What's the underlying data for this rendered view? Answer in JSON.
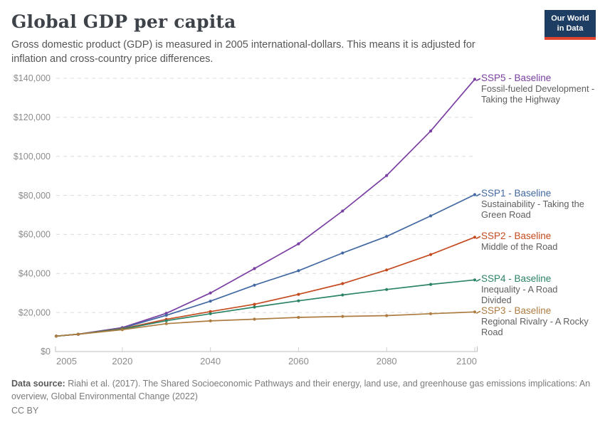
{
  "header": {
    "title": "Global GDP per capita",
    "subtitle": "Gross domestic product (GDP) is measured in 2005 international-dollars. This means it is adjusted for inflation and cross-country price differences.",
    "logo": {
      "line1": "Our World",
      "line2": "in Data",
      "bg_color": "#1d3d63",
      "accent_color": "#e0432e"
    }
  },
  "chart_data": {
    "type": "line",
    "title": "Global GDP per capita",
    "xlabel": "",
    "ylabel": "",
    "x": [
      2005,
      2010,
      2020,
      2030,
      2040,
      2050,
      2060,
      2070,
      2080,
      2090,
      2100
    ],
    "x_ticks": [
      2005,
      2020,
      2040,
      2060,
      2080,
      2100
    ],
    "y_ticks": [
      0,
      20000,
      40000,
      60000,
      80000,
      100000,
      120000,
      140000
    ],
    "y_tick_labels": [
      "$0",
      "$20,000",
      "$40,000",
      "$60,000",
      "$80,000",
      "$100,000",
      "$120,000",
      "$140,000"
    ],
    "ylim": [
      0,
      140000
    ],
    "xlim": [
      2005,
      2100
    ],
    "grid": "horizontal-dashed",
    "legend_position": "right-of-line-ends",
    "marker": "point-per-year",
    "series": [
      {
        "id": "ssp5",
        "label": "SSP5 - Baseline",
        "description": "Fossil-fueled Development - Taking the Highway",
        "color": "#7a3fa2",
        "values": [
          7900,
          8900,
          12300,
          19600,
          30000,
          42500,
          55200,
          72000,
          90200,
          113000,
          139500
        ]
      },
      {
        "id": "ssp1",
        "label": "SSP1 - Baseline",
        "description": "Sustainability - Taking the Green Road",
        "color": "#4269a2",
        "values": [
          7900,
          8900,
          12000,
          18600,
          25800,
          34000,
          41400,
          50500,
          59000,
          69500,
          80400
        ]
      },
      {
        "id": "ssp2",
        "label": "SSP2 - Baseline",
        "description": "Middle of the Road",
        "color": "#c44a1f",
        "values": [
          7900,
          8900,
          11700,
          16500,
          20500,
          24200,
          29300,
          34800,
          41800,
          49700,
          58600
        ]
      },
      {
        "id": "ssp4",
        "label": "SSP4 - Baseline",
        "description": "Inequality - A Road Divided",
        "color": "#2b8465",
        "values": [
          7900,
          8900,
          11500,
          15800,
          19400,
          22800,
          26000,
          29000,
          31800,
          34400,
          36700
        ]
      },
      {
        "id": "ssp3",
        "label": "SSP3 - Baseline",
        "description": "Regional Rivalry - A Rocky Road",
        "color": "#ad7c40",
        "values": [
          7900,
          8900,
          11200,
          14300,
          15700,
          16600,
          17500,
          18000,
          18400,
          19400,
          20300
        ]
      }
    ]
  },
  "footer": {
    "source_label": "Data source:",
    "source_text": " Riahi et al. (2017). The Shared Socioeconomic Pathways and their energy, land use, and greenhouse gas emissions implications: An overview, Global Environmental Change (2022)",
    "license": "CC BY"
  }
}
